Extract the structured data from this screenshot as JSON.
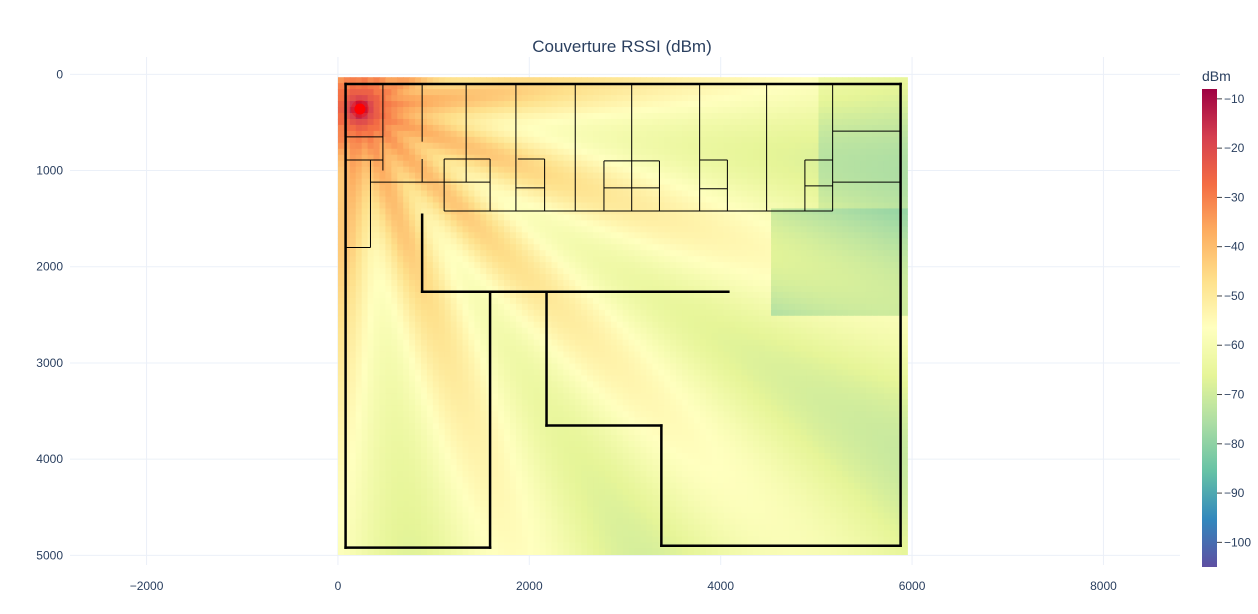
{
  "chart_data": {
    "type": "heatmap",
    "title": "Couverture RSSI (dBm)",
    "xlabel": "",
    "ylabel": "",
    "xlim": [
      -2800,
      8800
    ],
    "ylim": [
      5100,
      -180
    ],
    "x_ticks": [
      -2000,
      0,
      2000,
      4000,
      6000,
      8000
    ],
    "x_tick_labels": [
      "−2000",
      "0",
      "2000",
      "4000",
      "6000",
      "8000"
    ],
    "y_ticks": [
      0,
      1000,
      2000,
      3000,
      4000,
      5000
    ],
    "y_tick_labels": [
      "0",
      "1000",
      "2000",
      "3000",
      "4000",
      "5000"
    ],
    "grid": true,
    "heatmap_extent": {
      "x": [
        0,
        5950
      ],
      "y": [
        30,
        4990
      ]
    },
    "colorbar": {
      "title": "dBm",
      "range": [
        -105,
        -8
      ],
      "ticks": [
        -10,
        -20,
        -30,
        -40,
        -50,
        -60,
        -70,
        -80,
        -90,
        -100
      ],
      "tick_labels": [
        "−10",
        "−20",
        "−30",
        "−40",
        "−50",
        "−60",
        "−70",
        "−80",
        "−90",
        "−100"
      ],
      "colorscale": "Spectral"
    },
    "access_point": {
      "x": 230,
      "y": 360,
      "rssi": -10,
      "color": "#ff0000"
    },
    "walls_thick": [
      [
        [
          80,
          100
        ],
        [
          5880,
          100
        ]
      ],
      [
        [
          80,
          100
        ],
        [
          80,
          4920
        ]
      ],
      [
        [
          5880,
          100
        ],
        [
          5880,
          4900
        ]
      ],
      [
        [
          80,
          4920
        ],
        [
          1590,
          4920
        ]
      ],
      [
        [
          1590,
          2260
        ],
        [
          1590,
          4920
        ]
      ],
      [
        [
          880,
          1460
        ],
        [
          880,
          2260
        ]
      ],
      [
        [
          880,
          2260
        ],
        [
          4080,
          2260
        ]
      ],
      [
        [
          2180,
          2260
        ],
        [
          2180,
          3650
        ]
      ],
      [
        [
          2180,
          3650
        ],
        [
          3380,
          3650
        ]
      ],
      [
        [
          3380,
          3650
        ],
        [
          3380,
          4900
        ]
      ],
      [
        [
          3380,
          4900
        ],
        [
          5880,
          4900
        ]
      ]
    ],
    "walls_thin": [
      [
        [
          470,
          100
        ],
        [
          470,
          1000
        ]
      ],
      [
        [
          880,
          100
        ],
        [
          880,
          700
        ]
      ],
      [
        [
          1340,
          100
        ],
        [
          1340,
          1120
        ]
      ],
      [
        [
          1860,
          100
        ],
        [
          1860,
          1420
        ]
      ],
      [
        [
          2480,
          100
        ],
        [
          2480,
          1420
        ]
      ],
      [
        [
          3070,
          100
        ],
        [
          3070,
          1420
        ]
      ],
      [
        [
          3780,
          100
        ],
        [
          3780,
          1420
        ]
      ],
      [
        [
          4480,
          100
        ],
        [
          4480,
          1420
        ]
      ],
      [
        [
          5170,
          100
        ],
        [
          5170,
          1420
        ]
      ],
      [
        [
          80,
          650
        ],
        [
          470,
          650
        ]
      ],
      [
        [
          80,
          890
        ],
        [
          470,
          890
        ]
      ],
      [
        [
          340,
          890
        ],
        [
          340,
          1800
        ]
      ],
      [
        [
          80,
          1800
        ],
        [
          340,
          1800
        ]
      ],
      [
        [
          340,
          1120
        ],
        [
          1590,
          1120
        ]
      ],
      [
        [
          880,
          880
        ],
        [
          880,
          1120
        ]
      ],
      [
        [
          1110,
          880
        ],
        [
          1590,
          880
        ]
      ],
      [
        [
          1110,
          880
        ],
        [
          1110,
          1420
        ]
      ],
      [
        [
          1590,
          880
        ],
        [
          1590,
          1420
        ]
      ],
      [
        [
          1110,
          1420
        ],
        [
          5170,
          1420
        ]
      ],
      [
        [
          1880,
          880
        ],
        [
          2160,
          880
        ]
      ],
      [
        [
          2160,
          880
        ],
        [
          2160,
          1420
        ]
      ],
      [
        [
          1860,
          1180
        ],
        [
          2160,
          1180
        ]
      ],
      [
        [
          2780,
          900
        ],
        [
          3360,
          900
        ]
      ],
      [
        [
          2780,
          900
        ],
        [
          2780,
          1420
        ]
      ],
      [
        [
          3360,
          900
        ],
        [
          3360,
          1420
        ]
      ],
      [
        [
          2780,
          1180
        ],
        [
          3360,
          1180
        ]
      ],
      [
        [
          3780,
          890
        ],
        [
          4070,
          890
        ]
      ],
      [
        [
          4070,
          890
        ],
        [
          4070,
          1420
        ]
      ],
      [
        [
          3780,
          1190
        ],
        [
          4070,
          1190
        ]
      ],
      [
        [
          4880,
          890
        ],
        [
          5170,
          890
        ]
      ],
      [
        [
          4880,
          890
        ],
        [
          4880,
          1420
        ]
      ],
      [
        [
          4880,
          1160
        ],
        [
          5170,
          1160
        ]
      ],
      [
        [
          5170,
          590
        ],
        [
          5880,
          590
        ]
      ],
      [
        [
          5170,
          1120
        ],
        [
          5880,
          1120
        ]
      ]
    ]
  }
}
